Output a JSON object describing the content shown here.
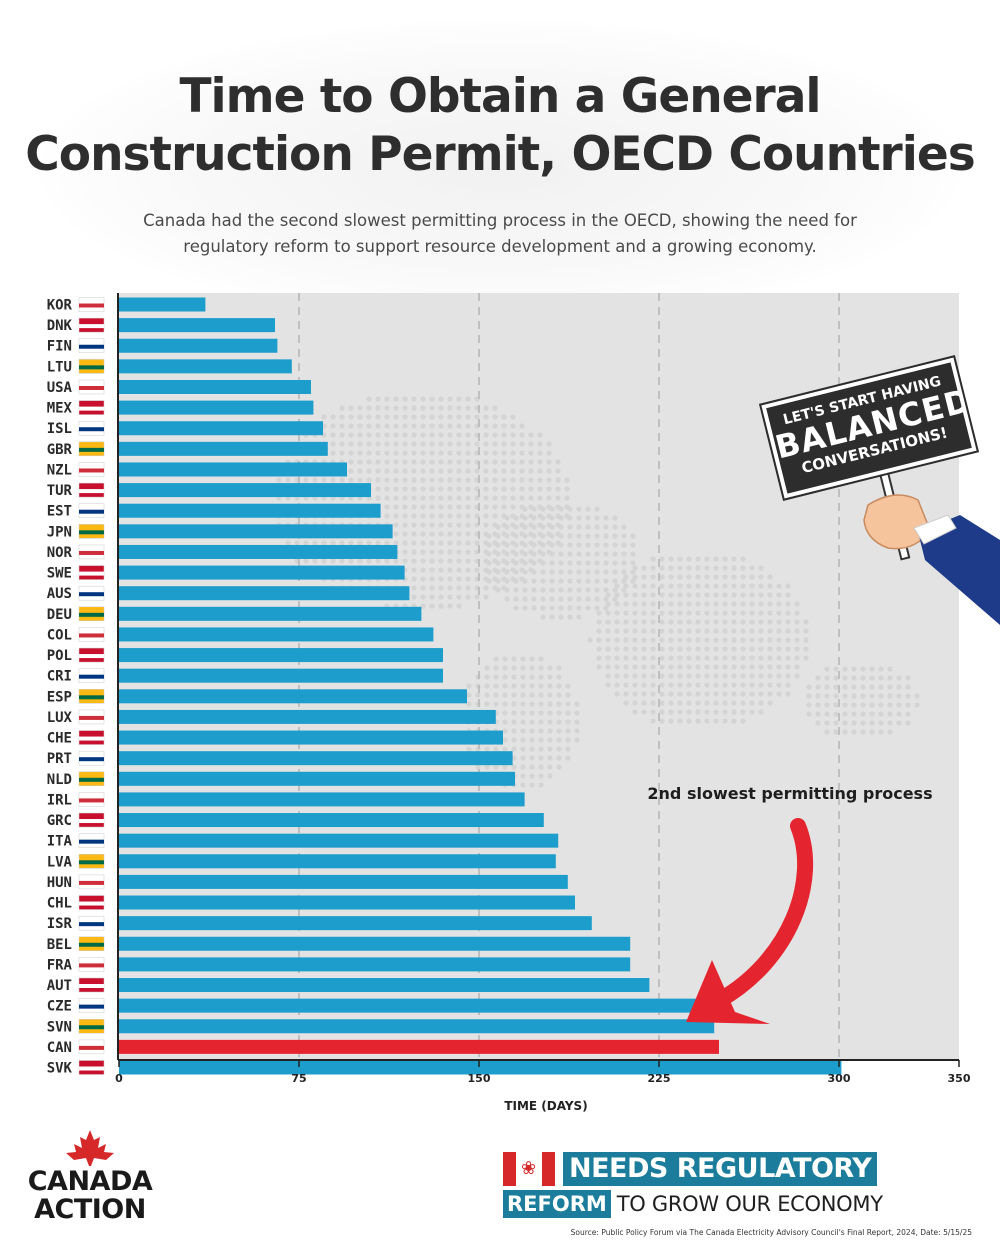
{
  "title_lines": [
    "Time to Obtain a General",
    "Construction Permit, OECD Countries"
  ],
  "subtitle_lines": [
    "Canada had the second slowest permitting process in the OECD, showing the need for",
    "regulatory reform to support resource development and a growing economy."
  ],
  "chart_data": {
    "type": "bar",
    "orientation": "horizontal",
    "categories": [
      "KOR",
      "DNK",
      "FIN",
      "LTU",
      "USA",
      "MEX",
      "ISL",
      "GBR",
      "NZL",
      "TUR",
      "EST",
      "JPN",
      "NOR",
      "SWE",
      "AUS",
      "DEU",
      "COL",
      "POL",
      "CRI",
      "ESP",
      "LUX",
      "CHE",
      "PRT",
      "NLD",
      "IRL",
      "GRC",
      "ITA",
      "LVA",
      "HUN",
      "CHL",
      "ISR",
      "BEL",
      "FRA",
      "AUT",
      "CZE",
      "SVN",
      "CAN",
      "SVK"
    ],
    "values": [
      36,
      65,
      66,
      72,
      80,
      81,
      85,
      87,
      95,
      105,
      109,
      114,
      116,
      119,
      121,
      126,
      131,
      135,
      135,
      145,
      157,
      160,
      164,
      165,
      169,
      177,
      183,
      182,
      187,
      190,
      197,
      213,
      213,
      221,
      245,
      248,
      250,
      301
    ],
    "highlight": "CAN",
    "xlabel": "TIME (DAYS)",
    "xlim": [
      0,
      350
    ],
    "xticks": [
      0,
      75,
      150,
      225,
      300,
      350
    ],
    "grid": "vertical dashed",
    "colors": {
      "bar": "#1c9dcb",
      "highlight": "#e4242f",
      "plot_bg": "#e3e3e3",
      "grid": "#b4b4b4"
    }
  },
  "sign": {
    "line1": "LET'S START HAVING",
    "line2": "BALANCED",
    "line3": "CONVERSATIONS!"
  },
  "annotation": "2nd slowest permitting process",
  "logo": {
    "line1": "CANADA",
    "line2": "ACTION",
    "icon": "maple-leaf-icon"
  },
  "banner": {
    "needs": "NEEDS REGULATORY",
    "reform": "REFORM",
    "rest": "TO GROW OUR ECONOMY",
    "icon": "canada-flag-icon"
  },
  "source": "Source: Public Policy Forum via The Canada Electricity Advisory Council's Final Report, 2024, Date: 5/15/25"
}
